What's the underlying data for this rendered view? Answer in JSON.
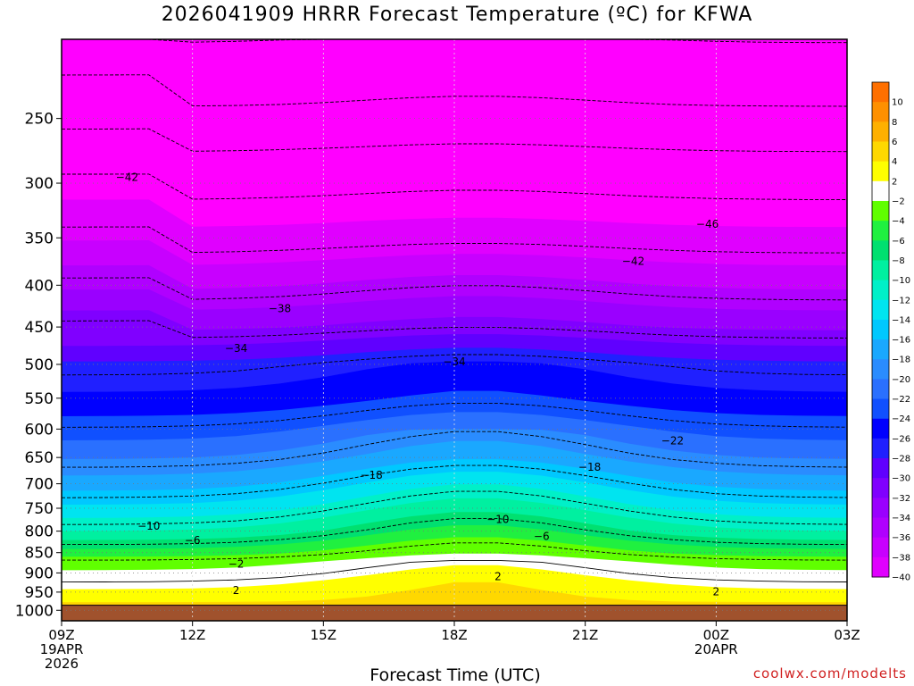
{
  "chart_data": {
    "type": "time-height contour",
    "title": "2026041909 HRRR Forecast Temperature (ºC) for KFWA",
    "xlabel": "Forecast Time (UTC)",
    "credit": "coolwx.com/modelts",
    "x_ticks": [
      {
        "label": "09Z",
        "sub": [
          "19APR",
          "2026"
        ],
        "hour": 0
      },
      {
        "label": "12Z",
        "sub": [],
        "hour": 3
      },
      {
        "label": "15Z",
        "sub": [],
        "hour": 6
      },
      {
        "label": "18Z",
        "sub": [],
        "hour": 9
      },
      {
        "label": "21Z",
        "sub": [],
        "hour": 12
      },
      {
        "label": "00Z",
        "sub": [
          "20APR"
        ],
        "hour": 15
      },
      {
        "label": "03Z",
        "sub": [],
        "hour": 18
      }
    ],
    "y_ticks": [
      250,
      300,
      350,
      400,
      450,
      500,
      550,
      600,
      650,
      700,
      750,
      800,
      850,
      900,
      950,
      1000
    ],
    "y_axis": "pressure (hPa), log scale",
    "ylim": [
      200,
      1030
    ],
    "ground_level_hpa": 984,
    "levels": [
      {
        "value": -42,
        "color": "#ff00ff"
      },
      {
        "value": -38,
        "color": "#e000ff"
      },
      {
        "value": -36,
        "color": "#c800ff"
      },
      {
        "value": -34,
        "color": "#b000ff"
      },
      {
        "value": -32,
        "color": "#9a00ff"
      },
      {
        "value": -30,
        "color": "#8000ff"
      },
      {
        "value": -28,
        "color": "#6000ff"
      },
      {
        "value": -26,
        "color": "#2020ff"
      },
      {
        "value": -24,
        "color": "#0000ff"
      },
      {
        "value": -22,
        "color": "#1050ff"
      },
      {
        "value": -20,
        "color": "#2a70ff"
      },
      {
        "value": -18,
        "color": "#2a8cff"
      },
      {
        "value": -16,
        "color": "#1aa8ff"
      },
      {
        "value": -14,
        "color": "#00c8ff"
      },
      {
        "value": -12,
        "color": "#00e4f0"
      },
      {
        "value": -10,
        "color": "#00f0c8"
      },
      {
        "value": -8,
        "color": "#00f0a0"
      },
      {
        "value": -6,
        "color": "#00e070"
      },
      {
        "value": -4,
        "color": "#20f040"
      },
      {
        "value": -2,
        "color": "#60ff00"
      },
      {
        "value": 2,
        "color": "#ffffff"
      },
      {
        "value": 4,
        "color": "#ffff00"
      },
      {
        "value": 6,
        "color": "#ffd800"
      },
      {
        "value": 8,
        "color": "#ffb000"
      },
      {
        "value": 10,
        "color": "#ff9000"
      },
      {
        "value": 12,
        "color": "#ff7000"
      }
    ],
    "colorbar_labels": [
      "10",
      "8",
      "6",
      "4",
      "2",
      "−2",
      "−4",
      "−6",
      "−8",
      "−10",
      "−12",
      "−14",
      "−16",
      "−18",
      "−20",
      "−22",
      "−24",
      "−26",
      "−28",
      "−30",
      "−32",
      "−34",
      "−36",
      "−38",
      "−40"
    ],
    "contour_labels": [
      {
        "text": "−42",
        "hour": 1.5,
        "p": 295
      },
      {
        "text": "−46",
        "hour": 14.8,
        "p": 337
      },
      {
        "text": "−42",
        "hour": 13.1,
        "p": 374
      },
      {
        "text": "−38",
        "hour": 5.0,
        "p": 427
      },
      {
        "text": "−34",
        "hour": 4.0,
        "p": 478
      },
      {
        "text": "−34",
        "hour": 9.0,
        "p": 496
      },
      {
        "text": "−22",
        "hour": 14.0,
        "p": 620
      },
      {
        "text": "−18",
        "hour": 7.1,
        "p": 683
      },
      {
        "text": "−18",
        "hour": 12.1,
        "p": 668
      },
      {
        "text": "−10",
        "hour": 2.0,
        "p": 789
      },
      {
        "text": "−10",
        "hour": 10.0,
        "p": 774
      },
      {
        "text": "−6",
        "hour": 3.0,
        "p": 821
      },
      {
        "text": "−6",
        "hour": 11.0,
        "p": 812
      },
      {
        "text": "−2",
        "hour": 4.0,
        "p": 878
      },
      {
        "text": "2",
        "hour": 4.0,
        "p": 946
      },
      {
        "text": "2",
        "hour": 10.0,
        "p": 909
      },
      {
        "text": "2",
        "hour": 15.0,
        "p": 949
      }
    ]
  }
}
